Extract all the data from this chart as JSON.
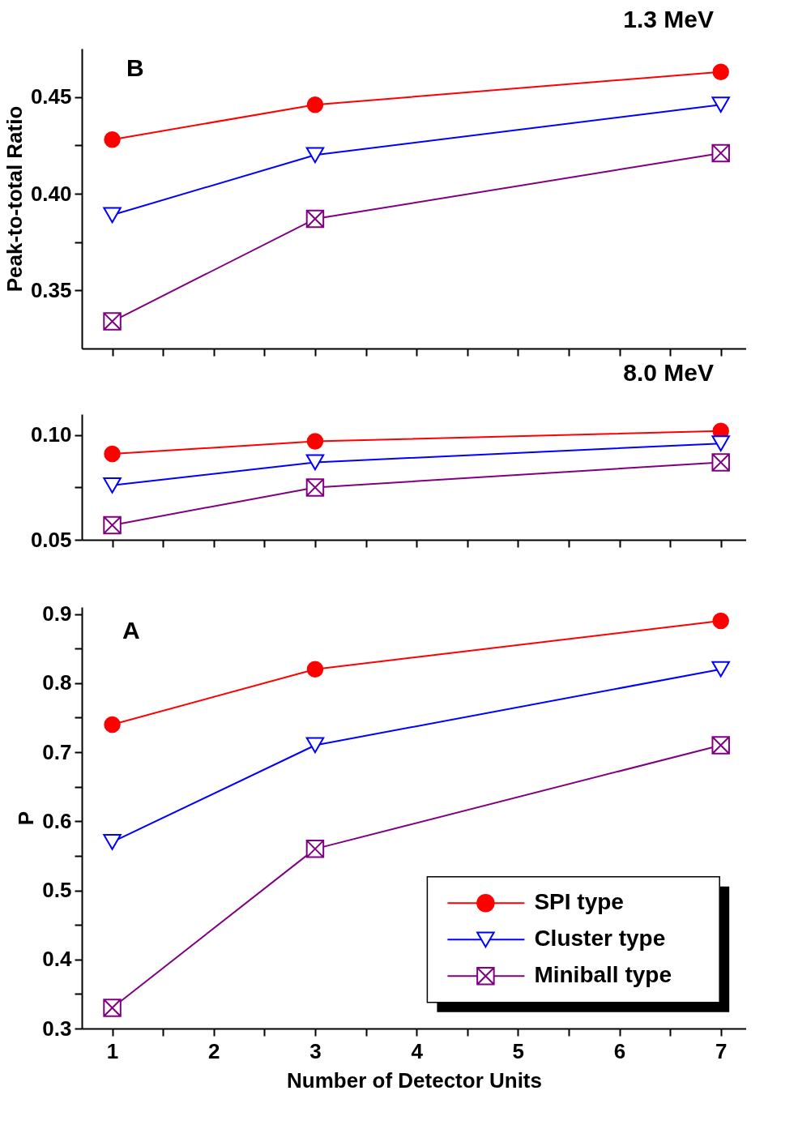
{
  "chart_data": [
    {
      "type": "line",
      "ylabel": "Peak-to-total Ratio",
      "annotations": [
        "B",
        "1.3 MeV"
      ],
      "x": [
        1,
        3,
        7
      ],
      "xlim": [
        0.7,
        7.25
      ],
      "xticks": [
        1,
        {
          "value": 1.5,
          "label": null
        },
        2,
        {
          "value": 2.5,
          "label": null
        },
        3,
        {
          "value": 3.5,
          "label": null
        },
        4,
        {
          "value": 4.5,
          "label": null
        },
        5,
        {
          "value": 5.5,
          "label": null
        },
        6,
        {
          "value": 6.5,
          "label": null
        },
        7
      ],
      "ylim": [
        0.32,
        0.475
      ],
      "yticks": [
        {
          "value": 0.35,
          "label": "0.35"
        },
        {
          "value": 0.375,
          "label": null
        },
        {
          "value": 0.4,
          "label": "0.40"
        },
        {
          "value": 0.425,
          "label": null
        },
        {
          "value": 0.45,
          "label": "0.45"
        }
      ],
      "tick_labels": "y",
      "grid": false,
      "legend": false,
      "series": [
        {
          "color": "#ff0000",
          "marker": "circle",
          "values": [
            0.428,
            0.446,
            0.463
          ]
        },
        {
          "color": "#0000ff",
          "marker": "triangle",
          "values": [
            0.389,
            0.42,
            0.446
          ]
        },
        {
          "color": "#800080",
          "marker": "cross",
          "values": [
            0.334,
            0.387,
            0.421
          ]
        }
      ]
    },
    {
      "type": "line",
      "annotations": [
        "8.0 MeV"
      ],
      "x": [
        1,
        3,
        7
      ],
      "xlim": [
        0.7,
        7.25
      ],
      "xticks": [
        1,
        {
          "value": 1.5,
          "label": null
        },
        2,
        {
          "value": 2.5,
          "label": null
        },
        3,
        {
          "value": 3.5,
          "label": null
        },
        4,
        {
          "value": 4.5,
          "label": null
        },
        5,
        {
          "value": 5.5,
          "label": null
        },
        6,
        {
          "value": 6.5,
          "label": null
        },
        7
      ],
      "ylim": [
        0.05,
        0.11
      ],
      "yticks": [
        {
          "value": 0.05,
          "label": "0.05"
        },
        {
          "value": 0.075,
          "label": null
        },
        {
          "value": 0.1,
          "label": "0.10"
        }
      ],
      "tick_labels": "y",
      "grid": false,
      "legend": false,
      "series": [
        {
          "color": "#ff0000",
          "marker": "circle",
          "values": [
            0.091,
            0.097,
            0.102
          ]
        },
        {
          "color": "#0000ff",
          "marker": "triangle",
          "values": [
            0.076,
            0.087,
            0.096
          ]
        },
        {
          "color": "#800080",
          "marker": "cross",
          "values": [
            0.057,
            0.075,
            0.087
          ]
        }
      ]
    },
    {
      "type": "line",
      "xlabel": "Number of Detector Units",
      "ylabel": "P",
      "annotations": [
        "A"
      ],
      "x": [
        1,
        3,
        7
      ],
      "xlim": [
        0.7,
        7.25
      ],
      "xticks": [
        1,
        {
          "value": 1.5,
          "label": null
        },
        2,
        {
          "value": 2.5,
          "label": null
        },
        3,
        {
          "value": 3.5,
          "label": null
        },
        4,
        {
          "value": 4.5,
          "label": null
        },
        5,
        {
          "value": 5.5,
          "label": null
        },
        6,
        {
          "value": 6.5,
          "label": null
        },
        7
      ],
      "ylim": [
        0.3,
        0.91
      ],
      "yticks": [
        0.3,
        {
          "value": 0.35,
          "label": null
        },
        0.4,
        {
          "value": 0.45,
          "label": null
        },
        0.5,
        {
          "value": 0.55,
          "label": null
        },
        0.6,
        {
          "value": 0.65,
          "label": null
        },
        0.7,
        {
          "value": 0.75,
          "label": null
        },
        0.8,
        {
          "value": 0.85,
          "label": null
        },
        0.9
      ],
      "grid": false,
      "legend": "bottom right",
      "series": [
        {
          "name": "SPI type",
          "color": "#ff0000",
          "marker": "circle",
          "values": [
            0.74,
            0.82,
            0.89
          ]
        },
        {
          "name": "Cluster type",
          "color": "#0000ff",
          "marker": "triangle",
          "values": [
            0.57,
            0.71,
            0.82
          ]
        },
        {
          "name": "Miniball type",
          "color": "#800080",
          "marker": "cross",
          "values": [
            0.33,
            0.56,
            0.71
          ]
        }
      ]
    }
  ]
}
